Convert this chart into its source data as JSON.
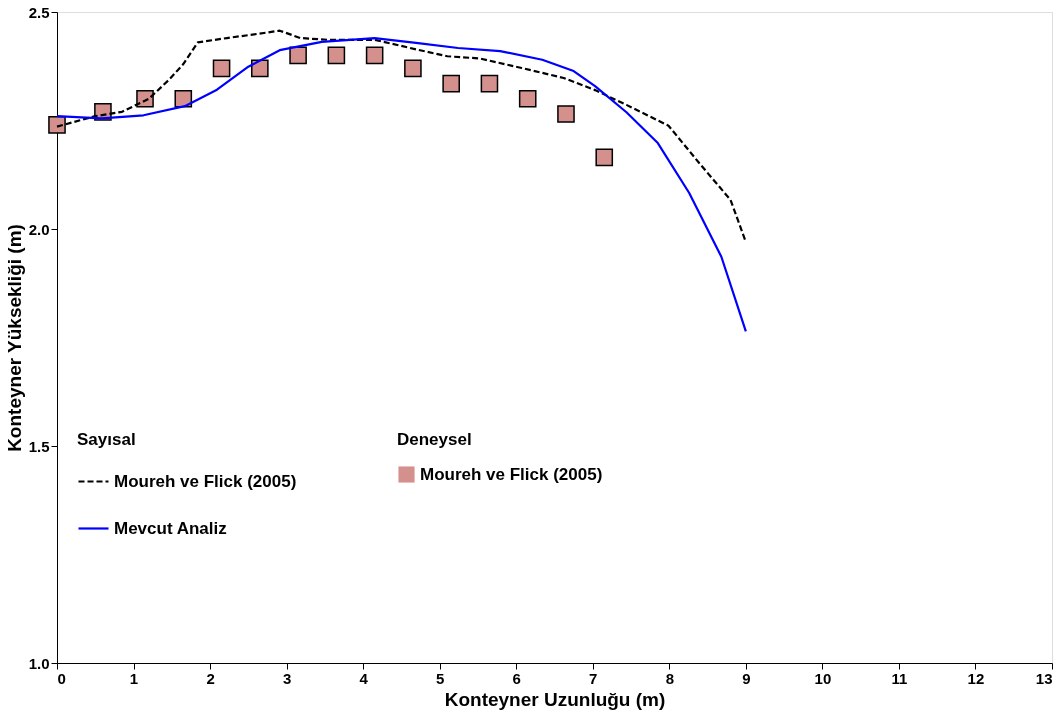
{
  "chart_data": {
    "type": "line",
    "xlabel": "Konteyner Uzunluğu (m)",
    "ylabel": "Konteyner Yüksekliği (m)",
    "annotations": [
      "Sayısal",
      "Deneysel"
    ],
    "xlim": [
      0,
      13
    ],
    "xticks": [
      0,
      1,
      2,
      3,
      4,
      5,
      6,
      7,
      8,
      9,
      10,
      11,
      12,
      13
    ],
    "ylim": [
      1.0,
      2.5
    ],
    "yticks": [
      {
        "value": 1.0,
        "label": "1.0"
      },
      {
        "value": 1.5,
        "label": "1.5"
      },
      {
        "value": 2.0,
        "label": "2.0"
      },
      {
        "value": 2.5,
        "label": "2.5"
      }
    ],
    "grid": false,
    "legend": "bottom left",
    "series": [
      {
        "name": "Moureh ve Flick (2005)",
        "line_style": "dashed",
        "marker": "none",
        "color": "#000000",
        "x": [
          0,
          0.5,
          0.85,
          1.2,
          1.47,
          1.65,
          1.84,
          2.22,
          2.64,
          2.91,
          3.18,
          3.53,
          4.15,
          4.69,
          5.1,
          5.52,
          6.07,
          6.62,
          7.03,
          7.44,
          7.99,
          8.4,
          8.8,
          9
        ],
        "values": [
          2.236,
          2.26,
          2.27,
          2.3,
          2.345,
          2.38,
          2.43,
          2.44,
          2.45,
          2.457,
          2.44,
          2.436,
          2.436,
          2.414,
          2.398,
          2.393,
          2.371,
          2.348,
          2.32,
          2.286,
          2.238,
          2.15,
          2.067,
          1.97
        ]
      },
      {
        "name": "Moureh ve Flick (2005)",
        "type": "scatter",
        "marker": "square",
        "color": "#d4908c",
        "x": [
          0,
          0.6,
          1.15,
          1.65,
          2.15,
          2.65,
          3.15,
          3.65,
          4.15,
          4.65,
          5.15,
          5.65,
          6.15,
          6.65,
          7.15
        ],
        "values": [
          2.24,
          2.27,
          2.3,
          2.3,
          2.37,
          2.37,
          2.4,
          2.4,
          2.4,
          2.37,
          2.335,
          2.335,
          2.3,
          2.265,
          2.165
        ]
      },
      {
        "name": "Mevcut Analiz",
        "line_style": "solid",
        "marker": "none",
        "color": "#0000ff",
        "x": [
          0,
          0.58,
          1.13,
          1.67,
          2.09,
          2.5,
          2.91,
          3.46,
          4.15,
          4.69,
          5.24,
          5.79,
          6.34,
          6.75,
          7.03,
          7.44,
          7.85,
          8.26,
          8.68,
          9
        ],
        "values": [
          2.26,
          2.255,
          2.262,
          2.283,
          2.321,
          2.374,
          2.412,
          2.431,
          2.44,
          2.429,
          2.417,
          2.41,
          2.39,
          2.364,
          2.329,
          2.269,
          2.198,
          2.083,
          1.936,
          1.764
        ]
      }
    ]
  }
}
